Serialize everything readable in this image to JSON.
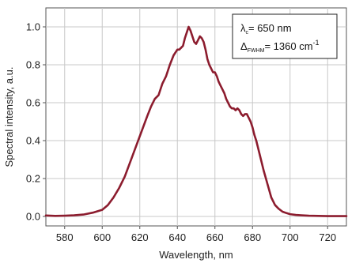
{
  "chart_data": {
    "type": "line",
    "title": "",
    "xlabel": "Wavelength, nm",
    "ylabel": "Spectral intensity, a.u.",
    "xlim": [
      570,
      730
    ],
    "ylim": [
      -0.05,
      1.1
    ],
    "x_ticks": [
      580,
      600,
      620,
      640,
      660,
      680,
      700,
      720
    ],
    "y_ticks": [
      0.0,
      0.2,
      0.4,
      0.6,
      0.8,
      1.0
    ],
    "x_tick_labels": [
      "580",
      "600",
      "620",
      "640",
      "660",
      "680",
      "700",
      "720"
    ],
    "y_tick_labels": [
      "0.0",
      "0.2",
      "0.4",
      "0.6",
      "0.8",
      "1.0"
    ],
    "grid": true,
    "legend_position": "top-right",
    "annotation": {
      "line1_symbol": "λ",
      "line1_sub": "c",
      "line1_text": "= 650 nm",
      "line2_symbol": "Δ",
      "line2_sub": "FWHM",
      "line2_text": "= 1360 cm",
      "line2_sup": "-1"
    },
    "series": [
      {
        "color": "#8c1c2e",
        "x": [
          570,
          575,
          580,
          585,
          590,
          595,
          600,
          603,
          606,
          609,
          612,
          615,
          618,
          621,
          624,
          626,
          628,
          630,
          632,
          634,
          636,
          638,
          640,
          641,
          642,
          643,
          644,
          645,
          646,
          647,
          648,
          649,
          650,
          651,
          652,
          653,
          654,
          655,
          656,
          657,
          658,
          659,
          660,
          661,
          662,
          663,
          664,
          665,
          666,
          667,
          668,
          669,
          670,
          671,
          672,
          673,
          674,
          675,
          676,
          677,
          678,
          679,
          680,
          681,
          682,
          683,
          684,
          686,
          688,
          690,
          692,
          694,
          696,
          698,
          700,
          703,
          706,
          710,
          715,
          720,
          725,
          730
        ],
        "y": [
          0.005,
          0.003,
          0.004,
          0.006,
          0.01,
          0.02,
          0.035,
          0.06,
          0.1,
          0.15,
          0.21,
          0.29,
          0.37,
          0.45,
          0.53,
          0.58,
          0.62,
          0.64,
          0.7,
          0.74,
          0.8,
          0.85,
          0.88,
          0.88,
          0.89,
          0.9,
          0.94,
          0.97,
          1.0,
          0.98,
          0.95,
          0.92,
          0.91,
          0.93,
          0.95,
          0.94,
          0.92,
          0.88,
          0.83,
          0.8,
          0.78,
          0.76,
          0.76,
          0.74,
          0.71,
          0.69,
          0.67,
          0.65,
          0.62,
          0.6,
          0.58,
          0.57,
          0.57,
          0.56,
          0.57,
          0.56,
          0.54,
          0.53,
          0.54,
          0.54,
          0.52,
          0.5,
          0.47,
          0.43,
          0.4,
          0.36,
          0.32,
          0.24,
          0.17,
          0.1,
          0.06,
          0.04,
          0.025,
          0.018,
          0.012,
          0.008,
          0.006,
          0.004,
          0.003,
          0.002,
          0.002,
          0.002
        ]
      }
    ]
  }
}
